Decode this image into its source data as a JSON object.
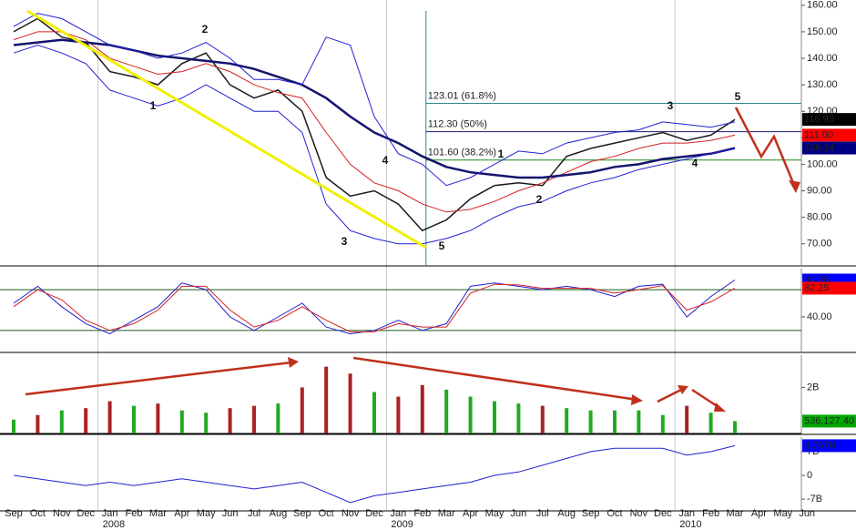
{
  "x_axis": {
    "categories": [
      "Sep",
      "Oct",
      "Nov",
      "Dec",
      "Jan",
      "Feb",
      "Mar",
      "Apr",
      "May",
      "Jun",
      "Jul",
      "Aug",
      "Sep",
      "Oct",
      "Nov",
      "Dec",
      "Jan",
      "Feb",
      "Mar",
      "Apr",
      "May",
      "Jun",
      "Jul",
      "Aug",
      "Sep",
      "Oct",
      "Nov",
      "Dec",
      "Jan",
      "Feb",
      "Mar",
      "Apr",
      "May",
      "Jun"
    ],
    "years": [
      null,
      null,
      null,
      null,
      "2008",
      null,
      null,
      null,
      null,
      null,
      null,
      null,
      null,
      null,
      null,
      null,
      "2009",
      null,
      null,
      null,
      null,
      null,
      null,
      null,
      null,
      null,
      null,
      null,
      "2010",
      null,
      null,
      null,
      null,
      null
    ]
  },
  "annotations": [
    "1",
    "2",
    "3",
    "4",
    "5",
    "1",
    "2",
    "3",
    "4",
    "5"
  ],
  "chart_data": [
    {
      "type": "line",
      "ylim": [
        62,
        162
      ],
      "yticks": [
        {
          "value": 70,
          "label": "70.00"
        },
        {
          "value": 80,
          "label": "80.00"
        },
        {
          "value": 90,
          "label": "90.00"
        },
        {
          "value": 100,
          "label": "100.00"
        },
        {
          "value": 110,
          "label": "110.00"
        },
        {
          "value": 120,
          "label": "120.00"
        },
        {
          "value": 130,
          "label": "130.00"
        },
        {
          "value": 140,
          "label": "140.00"
        },
        {
          "value": 150,
          "label": "150.00"
        },
        {
          "value": 160,
          "label": "160.00"
        }
      ],
      "series": [
        {
          "color": "#1a1a1a",
          "width": 1.5,
          "values": [
            150,
            155,
            148,
            146,
            135,
            133,
            130,
            138,
            142,
            130,
            125,
            128,
            120,
            95,
            88,
            90,
            85,
            75,
            79,
            87,
            92,
            93,
            92,
            103,
            106,
            108,
            110,
            112,
            109,
            111,
            116.93,
            null,
            null,
            null
          ],
          "end_label": "116.93",
          "end_box": "#000000"
        },
        {
          "color": "#d42020",
          "width": 1,
          "values": [
            147,
            150,
            150,
            147,
            140,
            137,
            134,
            135,
            138,
            135,
            130,
            127,
            125,
            112,
            100,
            93,
            90,
            85,
            82,
            83,
            86,
            90,
            93,
            97,
            101,
            103,
            106,
            108,
            108,
            109,
            111,
            null,
            null,
            null
          ],
          "end_label": "111.00",
          "end_box": "#ff0000"
        },
        {
          "color": "#14146e",
          "width": 2.5,
          "values": [
            145,
            146,
            147,
            146,
            145,
            143,
            141,
            140,
            139,
            138,
            136,
            133,
            130,
            125,
            118,
            112,
            108,
            103,
            99,
            97,
            96,
            95,
            95,
            96,
            97,
            99,
            100,
            102,
            103,
            104,
            106.14,
            null,
            null,
            null
          ],
          "end_label": "106.14",
          "end_box": "#000080"
        },
        {
          "color": "#2020d0",
          "width": 1,
          "values": [
            152,
            157,
            155,
            150,
            145,
            143,
            140,
            142,
            146,
            140,
            132,
            132,
            130,
            148,
            145,
            118,
            104,
            100,
            92,
            95,
            100,
            105,
            104,
            108,
            110,
            112,
            113,
            116,
            115,
            114,
            116,
            null,
            null,
            null
          ]
        },
        {
          "color": "#2020d0",
          "width": 1,
          "values": [
            142,
            145,
            142,
            138,
            128,
            125,
            122,
            125,
            130,
            125,
            120,
            120,
            112,
            85,
            75,
            72,
            70,
            70,
            72,
            75,
            80,
            84,
            86,
            90,
            93,
            95,
            98,
            100,
            102,
            104,
            106,
            null,
            null,
            null
          ]
        }
      ],
      "levels": [
        {
          "value": 123.01,
          "label": "123.01 (61.8%)",
          "color": "#2a8a8a"
        },
        {
          "value": 112.3,
          "label": "112.30 (50%)",
          "color": "#1a1a80"
        },
        {
          "value": 101.6,
          "label": "101.60 (38.2%)",
          "color": "#1a8a1a"
        }
      ]
    },
    {
      "type": "line",
      "ylim": [
        -11,
        111
      ],
      "yticks": [
        {
          "value": 40,
          "label": "40.00"
        }
      ],
      "hlines": [
        20,
        80
      ],
      "series": [
        {
          "color": "#2020d0",
          "width": 1,
          "values": [
            60,
            85,
            55,
            30,
            15,
            35,
            55,
            90,
            80,
            40,
            20,
            40,
            60,
            25,
            15,
            20,
            35,
            20,
            30,
            85,
            90,
            85,
            80,
            85,
            80,
            70,
            85,
            88,
            40,
            70,
            94.26,
            null,
            null,
            null
          ],
          "end_label": "94.26",
          "end_box": "#0000ff"
        },
        {
          "color": "#d42020",
          "width": 1,
          "values": [
            55,
            80,
            65,
            35,
            20,
            30,
            50,
            85,
            85,
            50,
            25,
            35,
            55,
            35,
            18,
            18,
            30,
            25,
            25,
            75,
            88,
            87,
            82,
            82,
            82,
            75,
            80,
            86,
            50,
            62,
            82.25,
            null,
            null,
            null
          ],
          "end_label": "82.25",
          "end_box": "#ff0000"
        }
      ]
    },
    {
      "type": "bar",
      "ylim": [
        0,
        3.4
      ],
      "yticks": [
        {
          "value": 2,
          "label": "2B"
        }
      ],
      "values": [
        0.6,
        0.8,
        1.0,
        1.1,
        1.4,
        1.2,
        1.3,
        1.0,
        0.9,
        1.1,
        1.2,
        1.3,
        2.0,
        2.9,
        2.6,
        1.8,
        1.6,
        2.1,
        1.9,
        1.6,
        1.4,
        1.3,
        1.2,
        1.1,
        1.0,
        1.0,
        1.0,
        0.8,
        1.2,
        0.9,
        0.536,
        null,
        null,
        null
      ],
      "colors": [
        "#22aa22",
        "#aa2222",
        "#22aa22",
        "#aa2222",
        "#aa2222",
        "#22aa22",
        "#aa2222",
        "#22aa22",
        "#22aa22",
        "#aa2222",
        "#aa2222",
        "#22aa22",
        "#aa2222",
        "#aa2222",
        "#aa2222",
        "#22aa22",
        "#aa2222",
        "#aa2222",
        "#22aa22",
        "#22aa22",
        "#22aa22",
        "#22aa22",
        "#aa2222",
        "#22aa22",
        "#22aa22",
        "#22aa22",
        "#22aa22",
        "#22aa22",
        "#aa2222",
        "#22aa22",
        "#22aa22",
        "#22aa22",
        "#22aa22",
        "#22aa22"
      ],
      "end_label": "536,127,40",
      "end_box": "#00aa00"
    },
    {
      "type": "line",
      "ylim": [
        -10.2,
        11.3
      ],
      "yticks": [
        {
          "value": -7,
          "label": "-7B"
        },
        0,
        {
          "value": 7,
          "label": "7B"
        }
      ],
      "series": [
        {
          "color": "#2020d0",
          "width": 1,
          "values": [
            0,
            -1,
            -2,
            -3,
            -2,
            -3,
            -2,
            -1,
            -2,
            -3,
            -4,
            -3,
            -2,
            -5,
            -8,
            -6,
            -5,
            -4,
            -3,
            -2,
            0,
            1,
            3,
            5,
            7,
            8,
            8,
            8,
            6,
            7,
            8.767,
            null,
            null,
            null
          ],
          "end_label": "8.767B",
          "end_box": "#0000ff"
        }
      ]
    }
  ]
}
